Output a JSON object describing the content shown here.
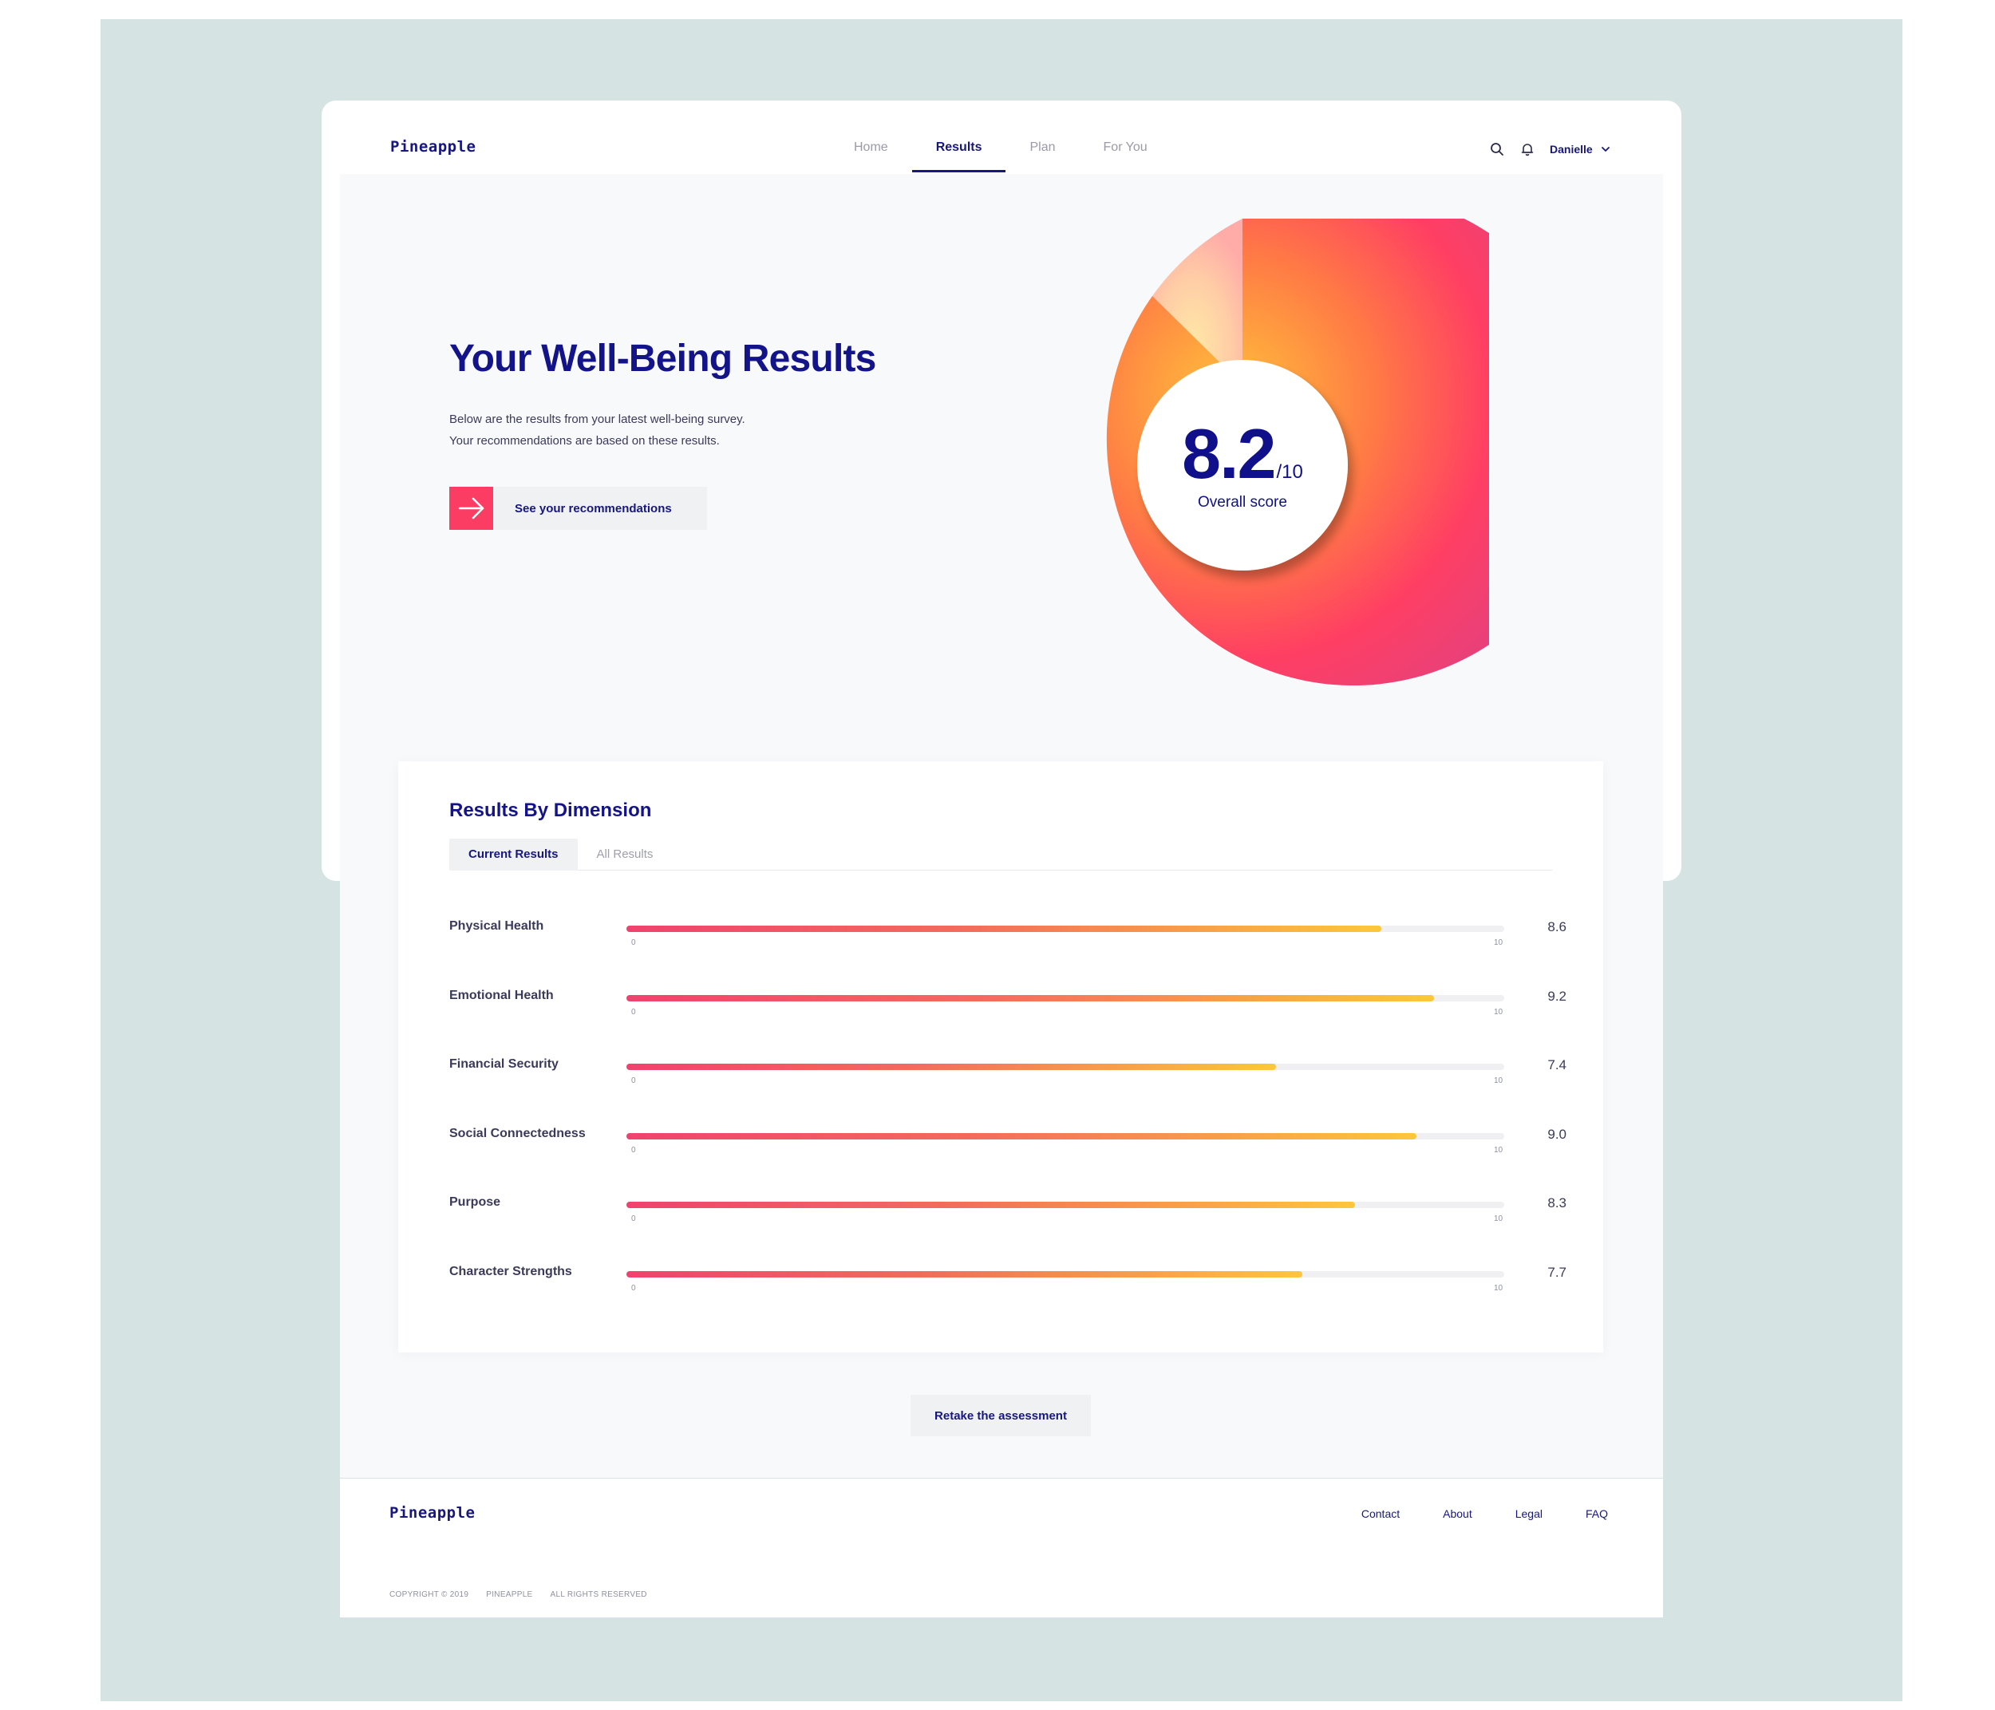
{
  "brand": {
    "logo": "Pineapple"
  },
  "nav": {
    "tabs": [
      {
        "label": "Home"
      },
      {
        "label": "Results"
      },
      {
        "label": "Plan"
      },
      {
        "label": "For You"
      }
    ],
    "active_tab": "Results",
    "user": {
      "name": "Danielle"
    },
    "icons": [
      "search-icon",
      "bell-icon",
      "chevron-down-icon"
    ]
  },
  "hero": {
    "title": "Your Well-Being Results",
    "description_line1": "Below are the results from your latest well-being survey.",
    "description_line2": "Your recommendations are based on these results.",
    "cta_label": "See your recommendations",
    "cta_icon": "arrow-right-icon"
  },
  "overall": {
    "score": "8.2",
    "denominator": "/10",
    "label": "Overall score",
    "value": 8.2,
    "max": 10
  },
  "dimensions": {
    "title": "Results By Dimension",
    "tabs": [
      {
        "label": "Current Results"
      },
      {
        "label": "All Results"
      }
    ],
    "active_tab": "Current Results",
    "scale_min": "0",
    "scale_max": "10",
    "items": [
      {
        "label": "Physical Health",
        "value": 8.6,
        "display": "8.6"
      },
      {
        "label": "Emotional Health",
        "value": 9.2,
        "display": "9.2"
      },
      {
        "label": "Financial Security",
        "value": 7.4,
        "display": "7.4"
      },
      {
        "label": "Social Connectedness",
        "value": 9.0,
        "display": "9.0"
      },
      {
        "label": "Purpose",
        "value": 8.3,
        "display": "8.3"
      },
      {
        "label": "Character Strengths",
        "value": 7.7,
        "display": "7.7"
      }
    ]
  },
  "retake_label": "Retake the assessment",
  "footer": {
    "logo": "Pineapple",
    "links": [
      {
        "label": "Contact"
      },
      {
        "label": "About"
      },
      {
        "label": "Legal"
      },
      {
        "label": "FAQ"
      }
    ],
    "copyright": [
      "COPYRIGHT © 2019",
      "PINEAPPLE",
      "ALL RIGHTS RESERVED"
    ]
  },
  "colors": {
    "brand_navy": "#17177e",
    "accent_red": "#fb3d63",
    "bar_start": "#f0426e",
    "bar_end": "#fcc73a",
    "backdrop": "#d5e3e2"
  }
}
